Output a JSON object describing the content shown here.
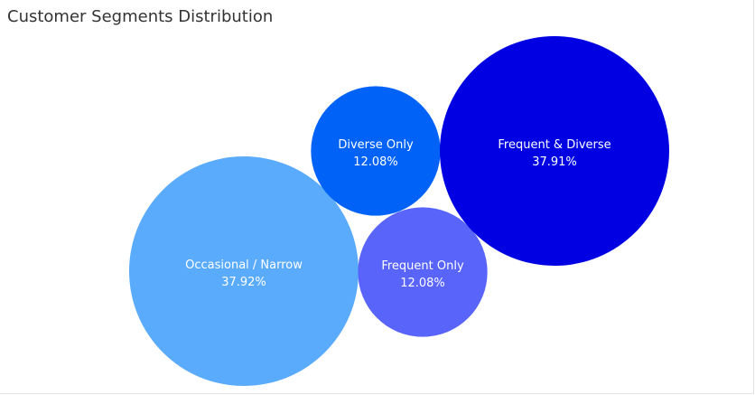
{
  "chart_data": {
    "type": "bubble",
    "title": "Customer Segments Distribution",
    "series": [
      {
        "name": "Occasional / Narrow",
        "value": 37.92,
        "label": "37.92%",
        "color": "#5aabfb"
      },
      {
        "name": "Diverse Only",
        "value": 12.08,
        "label": "12.08%",
        "color": "#0062f6"
      },
      {
        "name": "Frequent Only",
        "value": 12.08,
        "label": "12.08%",
        "color": "#5864fa"
      },
      {
        "name": "Frequent & Diverse",
        "value": 37.91,
        "label": "37.91%",
        "color": "#0000e2"
      }
    ],
    "legend": "none",
    "grid": false
  }
}
